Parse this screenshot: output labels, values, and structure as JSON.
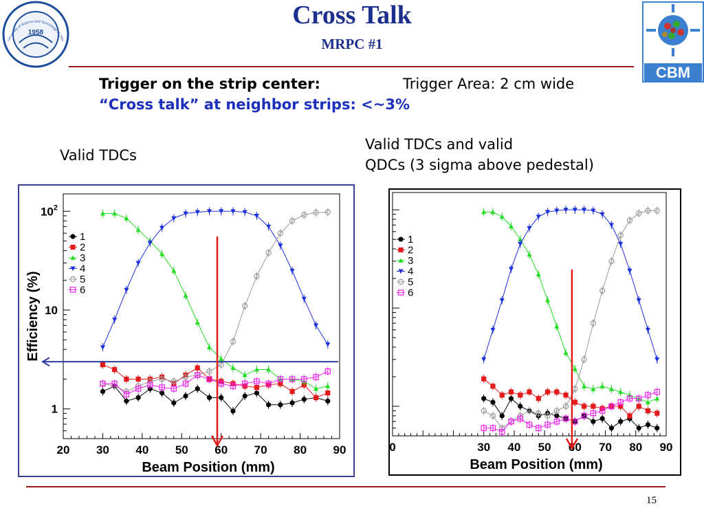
{
  "slide": {
    "title": "Cross Talk",
    "subtitle": "MRPC #1",
    "line1_bold": "Trigger on the strip center:",
    "line1_plain": "Trigger Area: 2 cm wide",
    "line2": "“Cross talk” at neighbor strips: <~3%",
    "left_caption": "Valid TDCs",
    "right_caption_1": "Valid TDCs and valid",
    "right_caption_2": "QDCs (3 sigma above pedestal)",
    "page_number": "15",
    "logo_left": {
      "year": "1958",
      "text": "University of Science and Technology of China"
    },
    "logo_right": {
      "text": "CBM"
    },
    "colors": {
      "title": "#1c2f8c",
      "rule": "#9c1a1a",
      "highlight": "#1c2fbd"
    }
  },
  "chart_data": [
    {
      "type": "line",
      "name": "left",
      "xlabel": "Beam Position (mm)",
      "ylabel": "Efficiency (%)",
      "xlim": [
        20,
        90
      ],
      "ylim": [
        0.5,
        150
      ],
      "yscale": "log",
      "xticks": [
        "20",
        "30",
        "40",
        "50",
        "60",
        "70",
        "80",
        "90"
      ],
      "yticks": [
        {
          "v": 1,
          "label": "1"
        },
        {
          "v": 10,
          "label": "10"
        },
        {
          "v": 100,
          "label": "10",
          "sup": "2"
        }
      ],
      "legend_position": "top-left",
      "annotations": {
        "vertical_arrow_x": 59,
        "horizontal_line_y": 3.0
      },
      "x": [
        30,
        33,
        36,
        39,
        42,
        45,
        48,
        51,
        54,
        57,
        60,
        63,
        66,
        69,
        72,
        75,
        78,
        81,
        84,
        87
      ],
      "series": [
        {
          "name": "1",
          "color": "#000000",
          "marker": "circle-filled",
          "values": [
            1.5,
            1.7,
            1.2,
            1.3,
            1.6,
            1.45,
            1.15,
            1.35,
            1.6,
            1.3,
            1.3,
            0.95,
            1.35,
            1.45,
            1.1,
            1.1,
            1.15,
            1.25,
            1.3,
            1.2
          ]
        },
        {
          "name": "2",
          "color": "#e41a1a",
          "marker": "square-filled",
          "values": [
            2.8,
            2.5,
            2.0,
            2.0,
            2.0,
            2.1,
            1.8,
            2.2,
            2.6,
            2.0,
            1.9,
            1.8,
            1.7,
            1.65,
            1.75,
            1.8,
            1.5,
            1.75,
            1.3,
            1.45
          ]
        },
        {
          "name": "3",
          "color": "#22dd22",
          "marker": "triangle-up",
          "values": [
            95,
            95,
            85,
            65,
            50,
            37,
            25,
            14,
            7.5,
            4.2,
            3.2,
            2.6,
            2.2,
            2.5,
            2.5,
            2.0,
            2.0,
            1.9,
            1.6,
            1.7
          ]
        },
        {
          "name": "4",
          "color": "#1c2fdd",
          "marker": "triangle-down",
          "values": [
            4.2,
            8,
            16,
            30,
            48,
            68,
            85,
            95,
            98,
            100,
            100,
            100,
            98,
            90,
            70,
            45,
            25,
            13,
            7,
            4.5
          ]
        },
        {
          "name": "5",
          "color": "#9a9a9a",
          "marker": "circle-open",
          "values": [
            1.8,
            1.7,
            1.5,
            1.7,
            1.9,
            2.0,
            1.9,
            2.1,
            2.2,
            2.4,
            2.8,
            4.8,
            11,
            22,
            38,
            60,
            80,
            92,
            97,
            98
          ]
        },
        {
          "name": "6",
          "color": "#ee22ee",
          "marker": "square-open",
          "values": [
            1.8,
            1.8,
            1.4,
            1.6,
            1.75,
            1.65,
            1.6,
            1.8,
            2.2,
            2.0,
            1.8,
            1.7,
            1.8,
            1.9,
            1.8,
            2.0,
            2.0,
            2.0,
            2.1,
            2.4
          ]
        }
      ]
    },
    {
      "type": "line",
      "name": "right",
      "xlabel": "Beam Position (mm)",
      "ylabel": "",
      "xlim": [
        0,
        90
      ],
      "ylim": [
        0.5,
        150
      ],
      "yscale": "log",
      "xticks": [
        "0",
        "30",
        "40",
        "50",
        "60",
        "70",
        "80",
        "90"
      ],
      "legend_position": "top-left",
      "annotations": {
        "vertical_arrow_x": 59
      },
      "x": [
        30,
        33,
        36,
        39,
        42,
        45,
        48,
        51,
        54,
        57,
        60,
        63,
        66,
        69,
        72,
        75,
        78,
        81,
        84,
        87
      ],
      "series": [
        {
          "name": "1",
          "color": "#000000",
          "marker": "circle-filled",
          "values": [
            1.2,
            1.1,
            0.8,
            1.2,
            1.0,
            0.9,
            0.8,
            0.85,
            0.8,
            0.75,
            0.7,
            0.8,
            0.7,
            0.75,
            0.6,
            0.7,
            0.75,
            0.6,
            0.65,
            0.6
          ]
        },
        {
          "name": "2",
          "color": "#e41a1a",
          "marker": "square-filled",
          "values": [
            1.9,
            1.6,
            1.3,
            1.4,
            1.3,
            1.4,
            1.2,
            1.4,
            1.4,
            1.3,
            1.1,
            1.0,
            1.0,
            0.95,
            1.0,
            1.0,
            0.8,
            1.0,
            0.9,
            0.85
          ]
        },
        {
          "name": "3",
          "color": "#22dd22",
          "marker": "triangle-up",
          "values": [
            95,
            95,
            85,
            68,
            50,
            35,
            22,
            12,
            6.5,
            3.5,
            2.4,
            1.6,
            1.5,
            1.6,
            1.5,
            1.4,
            1.3,
            1.2,
            1.1,
            1.2
          ]
        },
        {
          "name": "4",
          "color": "#1c2fdd",
          "marker": "triangle-down",
          "values": [
            3.0,
            6,
            12,
            25,
            45,
            65,
            85,
            95,
            98,
            100,
            100,
            100,
            98,
            90,
            70,
            45,
            24,
            12,
            6,
            3.0
          ]
        },
        {
          "name": "5",
          "color": "#9a9a9a",
          "marker": "circle-open",
          "values": [
            0.9,
            0.8,
            0.6,
            0.7,
            0.8,
            0.9,
            0.85,
            0.8,
            0.9,
            1.0,
            1.5,
            3.0,
            7,
            15,
            30,
            55,
            78,
            92,
            98,
            98
          ]
        },
        {
          "name": "6",
          "color": "#ee22ee",
          "marker": "square-open",
          "values": [
            0.6,
            0.6,
            0.55,
            0.7,
            0.75,
            0.65,
            0.6,
            0.65,
            0.7,
            0.75,
            0.7,
            0.8,
            0.85,
            0.9,
            1.0,
            1.1,
            1.2,
            1.2,
            1.3,
            1.4
          ]
        }
      ]
    }
  ]
}
